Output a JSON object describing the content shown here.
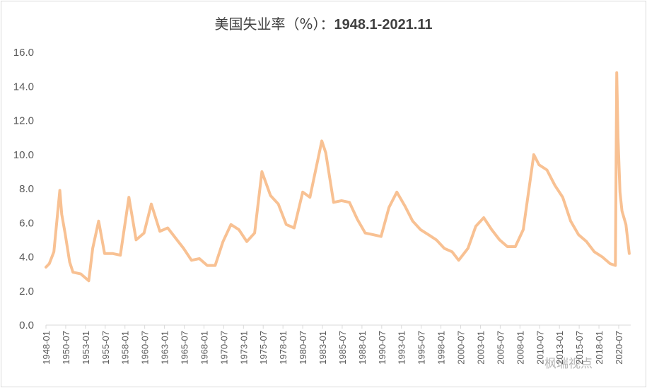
{
  "chart_data": {
    "type": "line",
    "title": "美国失业率（%）：1948.1-2021.11",
    "xlabel": "",
    "ylabel": "",
    "ylim": [
      0,
      16
    ],
    "yticks": [
      "0.0",
      "2.0",
      "4.0",
      "6.0",
      "8.0",
      "10.0",
      "12.0",
      "14.0",
      "16.0"
    ],
    "xticks": [
      "1948-01",
      "1950-07",
      "1953-01",
      "1955-07",
      "1958-01",
      "1960-07",
      "1963-01",
      "1965-07",
      "1968-01",
      "1970-07",
      "1973-01",
      "1975-07",
      "1978-01",
      "1980-07",
      "1983-01",
      "1985-07",
      "1988-01",
      "1990-07",
      "1993-01",
      "1995-07",
      "1998-01",
      "2000-07",
      "2003-01",
      "2005-07",
      "2008-01",
      "2010-07",
      "2013-01",
      "2015-07",
      "2018-01",
      "2020-07"
    ],
    "grid": false,
    "series": [
      {
        "name": "美国失业率",
        "color": "#f8c193",
        "points": [
          [
            "1948-01",
            3.4
          ],
          [
            "1948-06",
            3.6
          ],
          [
            "1949-01",
            4.3
          ],
          [
            "1949-10",
            7.9
          ],
          [
            "1950-01",
            6.5
          ],
          [
            "1950-06",
            5.4
          ],
          [
            "1951-01",
            3.7
          ],
          [
            "1951-06",
            3.1
          ],
          [
            "1952-06",
            3.0
          ],
          [
            "1953-06",
            2.6
          ],
          [
            "1953-12",
            4.5
          ],
          [
            "1954-09",
            6.1
          ],
          [
            "1955-06",
            4.2
          ],
          [
            "1956-06",
            4.2
          ],
          [
            "1957-06",
            4.1
          ],
          [
            "1958-07",
            7.5
          ],
          [
            "1959-06",
            5.0
          ],
          [
            "1960-06",
            5.4
          ],
          [
            "1961-05",
            7.1
          ],
          [
            "1962-06",
            5.5
          ],
          [
            "1963-06",
            5.7
          ],
          [
            "1964-06",
            5.1
          ],
          [
            "1965-06",
            4.5
          ],
          [
            "1966-06",
            3.8
          ],
          [
            "1967-06",
            3.9
          ],
          [
            "1968-06",
            3.5
          ],
          [
            "1969-06",
            3.5
          ],
          [
            "1970-06",
            4.9
          ],
          [
            "1971-06",
            5.9
          ],
          [
            "1972-06",
            5.6
          ],
          [
            "1973-06",
            4.9
          ],
          [
            "1974-06",
            5.4
          ],
          [
            "1975-05",
            9.0
          ],
          [
            "1976-06",
            7.6
          ],
          [
            "1977-06",
            7.1
          ],
          [
            "1978-06",
            5.9
          ],
          [
            "1979-06",
            5.7
          ],
          [
            "1980-07",
            7.8
          ],
          [
            "1981-06",
            7.5
          ],
          [
            "1982-12",
            10.8
          ],
          [
            "1983-06",
            10.1
          ],
          [
            "1984-06",
            7.2
          ],
          [
            "1985-06",
            7.3
          ],
          [
            "1986-06",
            7.2
          ],
          [
            "1987-06",
            6.2
          ],
          [
            "1988-06",
            5.4
          ],
          [
            "1989-06",
            5.3
          ],
          [
            "1990-06",
            5.2
          ],
          [
            "1991-06",
            6.9
          ],
          [
            "1992-06",
            7.8
          ],
          [
            "1993-06",
            7.0
          ],
          [
            "1994-06",
            6.1
          ],
          [
            "1995-06",
            5.6
          ],
          [
            "1996-06",
            5.3
          ],
          [
            "1997-06",
            5.0
          ],
          [
            "1998-06",
            4.5
          ],
          [
            "1999-06",
            4.3
          ],
          [
            "2000-04",
            3.8
          ],
          [
            "2001-06",
            4.5
          ],
          [
            "2002-06",
            5.8
          ],
          [
            "2003-06",
            6.3
          ],
          [
            "2004-06",
            5.6
          ],
          [
            "2005-06",
            5.0
          ],
          [
            "2006-06",
            4.6
          ],
          [
            "2007-06",
            4.6
          ],
          [
            "2008-06",
            5.6
          ],
          [
            "2009-10",
            10.0
          ],
          [
            "2010-06",
            9.4
          ],
          [
            "2011-06",
            9.1
          ],
          [
            "2012-06",
            8.2
          ],
          [
            "2013-06",
            7.5
          ],
          [
            "2014-06",
            6.1
          ],
          [
            "2015-06",
            5.3
          ],
          [
            "2016-06",
            4.9
          ],
          [
            "2017-06",
            4.3
          ],
          [
            "2018-06",
            4.0
          ],
          [
            "2019-06",
            3.6
          ],
          [
            "2020-02",
            3.5
          ],
          [
            "2020-04",
            14.8
          ],
          [
            "2020-06",
            11.0
          ],
          [
            "2020-09",
            7.8
          ],
          [
            "2020-12",
            6.7
          ],
          [
            "2021-06",
            5.9
          ],
          [
            "2021-11",
            4.2
          ]
        ]
      }
    ]
  },
  "title_parts": {
    "cn": "美国失业率（%）：",
    "range": "1948.1-2021.11"
  },
  "watermark": "枫瑞视点"
}
